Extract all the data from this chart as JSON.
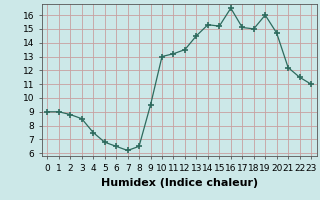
{
  "x": [
    0,
    1,
    2,
    3,
    4,
    5,
    6,
    7,
    8,
    9,
    10,
    11,
    12,
    13,
    14,
    15,
    16,
    17,
    18,
    19,
    20,
    21,
    22,
    23
  ],
  "y": [
    9,
    9,
    8.8,
    8.5,
    7.5,
    6.8,
    6.5,
    6.2,
    6.5,
    9.5,
    13.0,
    13.2,
    13.5,
    14.5,
    15.3,
    15.2,
    16.5,
    15.1,
    15.0,
    16.0,
    14.7,
    12.2,
    11.5,
    11.0
  ],
  "xlabel": "Humidex (Indice chaleur)",
  "xlim": [
    -0.5,
    23.5
  ],
  "ylim": [
    5.8,
    16.8
  ],
  "yticks": [
    6,
    7,
    8,
    9,
    10,
    11,
    12,
    13,
    14,
    15,
    16
  ],
  "xticks": [
    0,
    1,
    2,
    3,
    4,
    5,
    6,
    7,
    8,
    9,
    10,
    11,
    12,
    13,
    14,
    15,
    16,
    17,
    18,
    19,
    20,
    21,
    22,
    23
  ],
  "xtick_labels": [
    "0",
    "1",
    "2",
    "3",
    "4",
    "5",
    "6",
    "7",
    "8",
    "9",
    "10",
    "11",
    "12",
    "13",
    "14",
    "15",
    "16",
    "17",
    "18",
    "19",
    "20",
    "21",
    "22",
    "23"
  ],
  "line_color": "#2d6b5e",
  "marker": "+",
  "marker_size": 4,
  "bg_color": "#cce8e8",
  "grid_color": "#c8a0a0",
  "xlabel_fontsize": 8,
  "tick_fontsize": 6.5,
  "xlabel_fontweight": "bold"
}
